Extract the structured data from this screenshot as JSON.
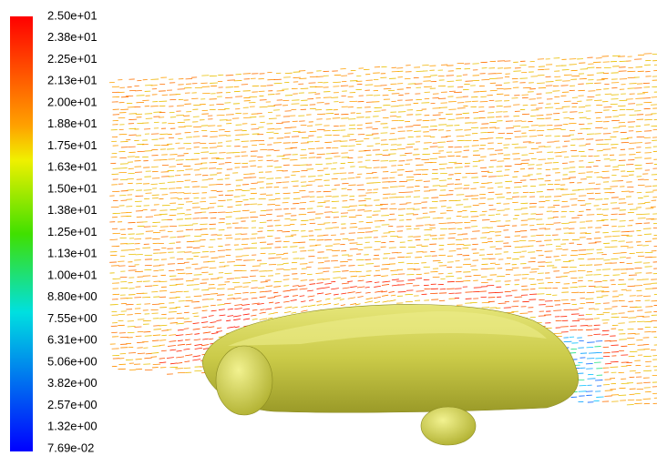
{
  "colorbar": {
    "labels": [
      "2.50e+01",
      "2.38e+01",
      "2.25e+01",
      "2.13e+01",
      "2.00e+01",
      "1.88e+01",
      "1.75e+01",
      "1.63e+01",
      "1.50e+01",
      "1.38e+01",
      "1.25e+01",
      "1.13e+01",
      "1.00e+01",
      "8.80e+00",
      "7.55e+00",
      "6.31e+00",
      "5.06e+00",
      "3.82e+00",
      "2.57e+00",
      "1.32e+00",
      "7.69e-02"
    ]
  }
}
